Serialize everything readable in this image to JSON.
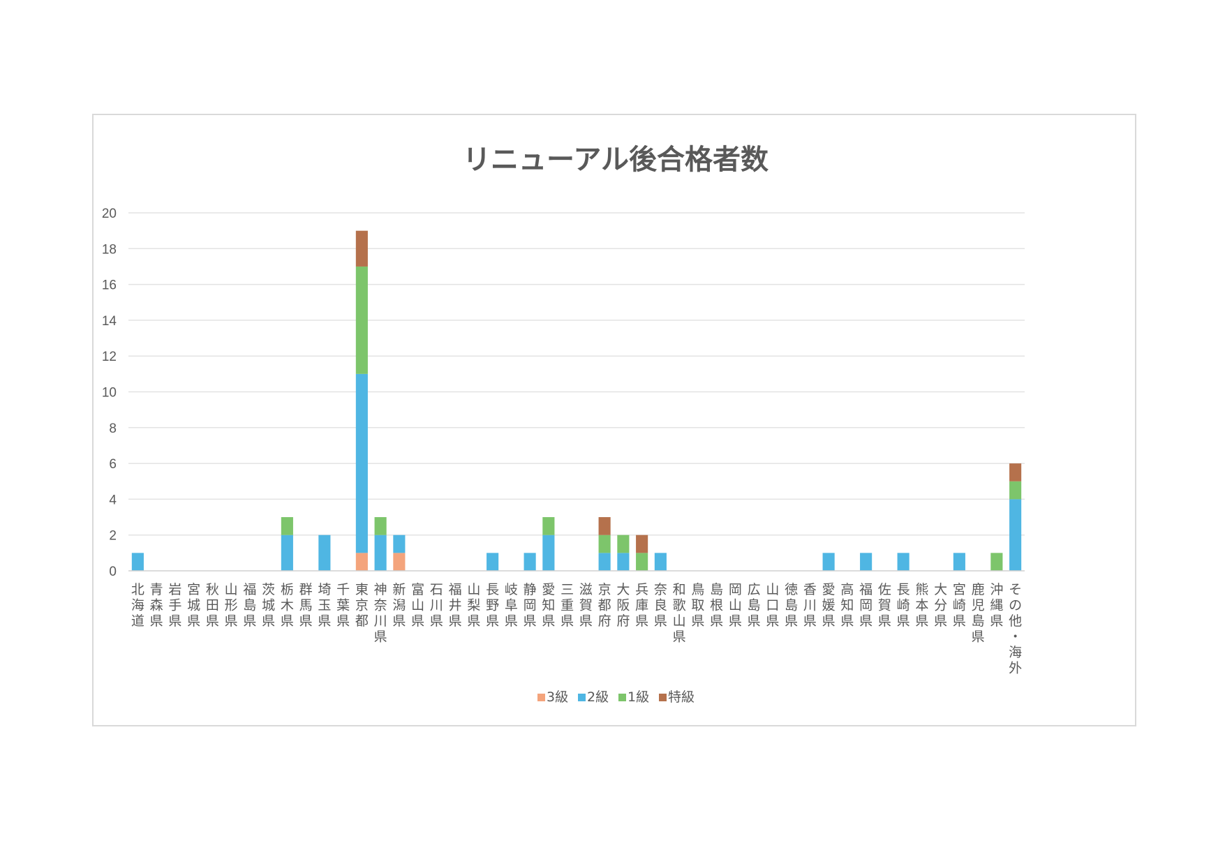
{
  "chart_data": {
    "type": "bar",
    "stacked": true,
    "title": "リニューアル後合格者数",
    "xlabel": "",
    "ylabel": "",
    "ylim": [
      0,
      20
    ],
    "yticks": [
      0,
      2,
      4,
      6,
      8,
      10,
      12,
      14,
      16,
      18,
      20
    ],
    "grid": true,
    "legend_position": "bottom",
    "categories": [
      "北海道",
      "青森県",
      "岩手県",
      "宮城県",
      "秋田県",
      "山形県",
      "福島県",
      "茨城県",
      "栃木県",
      "群馬県",
      "埼玉県",
      "千葉県",
      "東京都",
      "神奈川県",
      "新潟県",
      "富山県",
      "石川県",
      "福井県",
      "山梨県",
      "長野県",
      "岐阜県",
      "静岡県",
      "愛知県",
      "三重県",
      "滋賀県",
      "京都府",
      "大阪府",
      "兵庫県",
      "奈良県",
      "和歌山県",
      "鳥取県",
      "島根県",
      "岡山県",
      "広島県",
      "山口県",
      "徳島県",
      "香川県",
      "愛媛県",
      "高知県",
      "福岡県",
      "佐賀県",
      "長崎県",
      "熊本県",
      "大分県",
      "宮崎県",
      "鹿児島県",
      "沖縄県",
      "その他・海外"
    ],
    "series": [
      {
        "name": "3級",
        "color": "#f4a47c",
        "values": [
          0,
          0,
          0,
          0,
          0,
          0,
          0,
          0,
          0,
          0,
          0,
          0,
          1,
          0,
          1,
          0,
          0,
          0,
          0,
          0,
          0,
          0,
          0,
          0,
          0,
          0,
          0,
          0,
          0,
          0,
          0,
          0,
          0,
          0,
          0,
          0,
          0,
          0,
          0,
          0,
          0,
          0,
          0,
          0,
          0,
          0,
          0,
          0
        ]
      },
      {
        "name": "2級",
        "color": "#4fb6e3",
        "values": [
          1,
          0,
          0,
          0,
          0,
          0,
          0,
          0,
          2,
          0,
          2,
          0,
          10,
          2,
          1,
          0,
          0,
          0,
          0,
          1,
          0,
          1,
          2,
          0,
          0,
          1,
          1,
          0,
          1,
          0,
          0,
          0,
          0,
          0,
          0,
          0,
          0,
          1,
          0,
          1,
          0,
          1,
          0,
          0,
          1,
          0,
          0,
          4
        ]
      },
      {
        "name": "1級",
        "color": "#7dc56b",
        "values": [
          0,
          0,
          0,
          0,
          0,
          0,
          0,
          0,
          1,
          0,
          0,
          0,
          6,
          1,
          0,
          0,
          0,
          0,
          0,
          0,
          0,
          0,
          1,
          0,
          0,
          1,
          1,
          1,
          0,
          0,
          0,
          0,
          0,
          0,
          0,
          0,
          0,
          0,
          0,
          0,
          0,
          0,
          0,
          0,
          0,
          0,
          1,
          1
        ]
      },
      {
        "name": "特級",
        "color": "#b5714c",
        "values": [
          0,
          0,
          0,
          0,
          0,
          0,
          0,
          0,
          0,
          0,
          0,
          0,
          2,
          0,
          0,
          0,
          0,
          0,
          0,
          0,
          0,
          0,
          0,
          0,
          0,
          1,
          0,
          1,
          0,
          0,
          0,
          0,
          0,
          0,
          0,
          0,
          0,
          0,
          0,
          0,
          0,
          0,
          0,
          0,
          0,
          0,
          0,
          1
        ]
      }
    ]
  }
}
